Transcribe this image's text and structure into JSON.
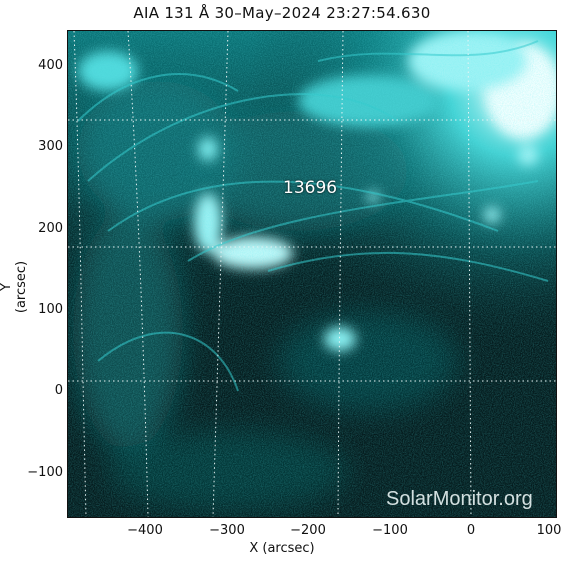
{
  "title": "AIA 131 Å 30–May–2024 23:27:54.630",
  "x_axis": {
    "label": "X (arcsec)",
    "ticks": [
      "−400",
      "−300",
      "−200",
      "−100",
      "0",
      "100"
    ],
    "tick_values": [
      -400,
      -300,
      -200,
      -100,
      0,
      100
    ],
    "range": [
      -497,
      103
    ]
  },
  "y_axis": {
    "label": "Y (arcsec)",
    "ticks": [
      "−100",
      "0",
      "100",
      "200",
      "300",
      "400"
    ],
    "tick_values": [
      -100,
      0,
      100,
      200,
      300,
      400
    ],
    "range": [
      -157,
      443
    ]
  },
  "active_region": "13696",
  "watermark": "SolarMonitor.org",
  "colors": {
    "background": "#031416",
    "emission": "#11d6d9",
    "bright": "#e9ffff",
    "grid": "#e6f4f4"
  }
}
